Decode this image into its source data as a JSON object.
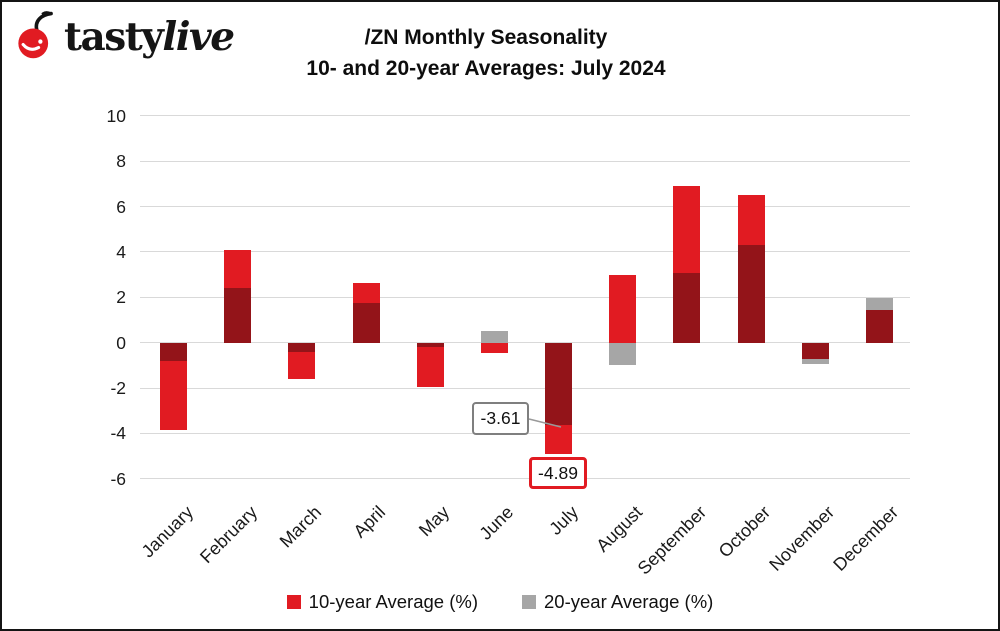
{
  "brand": {
    "first": "tasty",
    "second": "live",
    "cherry_color": "#e11b22"
  },
  "title": {
    "line1": "/ZN Monthly Seasonality",
    "line2": "10- and 20-year Averages: July 2024"
  },
  "chart_data": {
    "type": "bar",
    "bar_mode": "overlaid",
    "categories": [
      "January",
      "February",
      "March",
      "April",
      "May",
      "June",
      "July",
      "August",
      "September",
      "October",
      "November",
      "December"
    ],
    "series": [
      {
        "name": "10-year Average (%)",
        "color": "#e11b22",
        "values": [
          -3.85,
          4.1,
          -1.6,
          2.65,
          -1.95,
          -0.45,
          -4.89,
          3.0,
          6.9,
          6.5,
          -0.7,
          1.45
        ]
      },
      {
        "name": "20-year Average (%)",
        "color": "#a6a6a6",
        "values": [
          -0.8,
          2.4,
          -0.4,
          1.75,
          -0.2,
          0.5,
          -3.61,
          -1.0,
          3.05,
          4.3,
          -0.95,
          1.95
        ]
      }
    ],
    "overlap_color": "#931419",
    "y_ticks": [
      10,
      8,
      6,
      4,
      2,
      0,
      -2,
      -4,
      -6
    ],
    "ylim": [
      -6,
      10
    ],
    "grid": true,
    "gridline_color": "#d9d9d9",
    "legend_position": "bottom",
    "annotations": [
      {
        "label": "-3.61",
        "month": "July",
        "series": "20-year Average (%)",
        "box_style": "gray-border"
      },
      {
        "label": "-4.89",
        "month": "July",
        "series": "10-year Average (%)",
        "box_style": "red-border"
      }
    ]
  }
}
